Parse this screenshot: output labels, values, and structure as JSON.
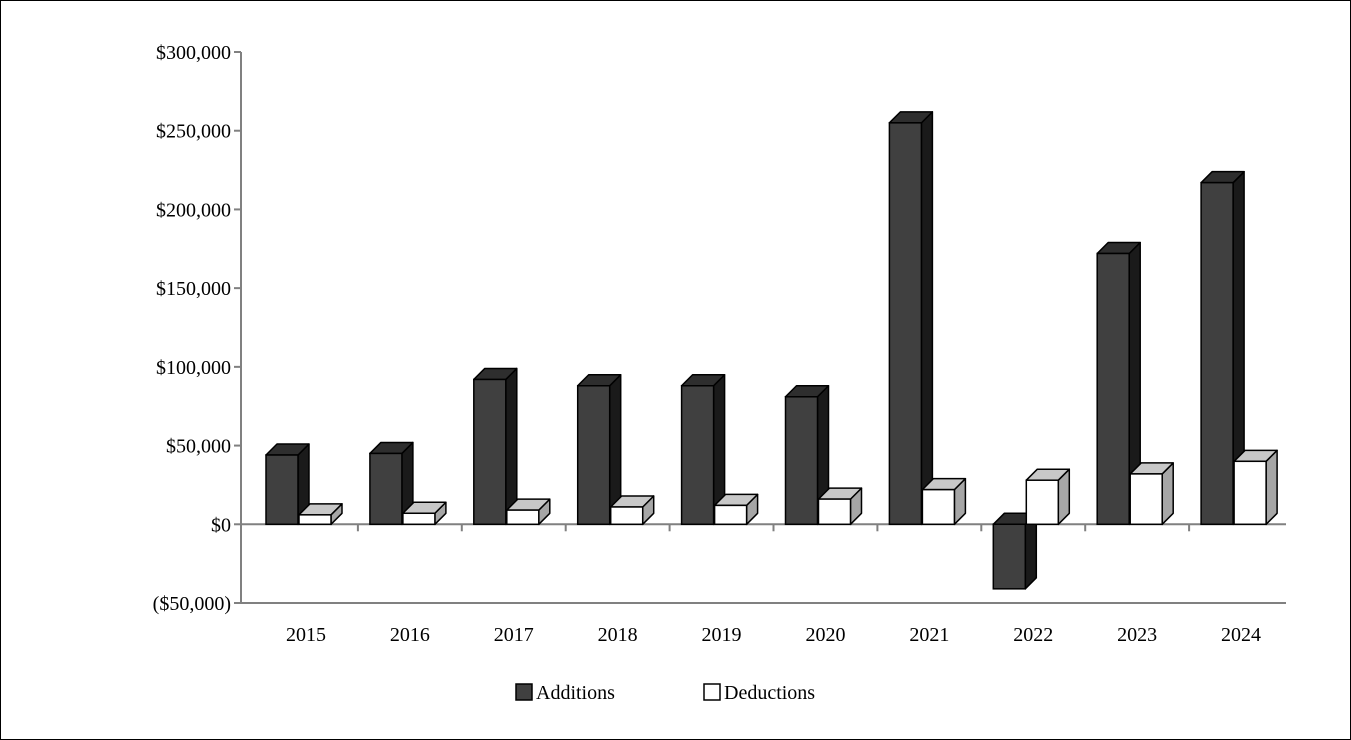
{
  "chart_data": {
    "type": "bar",
    "categories": [
      "2015",
      "2016",
      "2017",
      "2018",
      "2019",
      "2020",
      "2021",
      "2022",
      "2023",
      "2024"
    ],
    "series": [
      {
        "name": "Additions",
        "values": [
          44000,
          45000,
          92000,
          88000,
          88000,
          81000,
          255000,
          -41000,
          172000,
          217000
        ],
        "color": "#404040"
      },
      {
        "name": "Deductions",
        "values": [
          6000,
          7000,
          9000,
          11000,
          12000,
          16000,
          22000,
          28000,
          32000,
          40000
        ],
        "color": "#ffffff"
      }
    ],
    "ylim": [
      -50000,
      300000
    ],
    "yticks": [
      -50000,
      0,
      50000,
      100000,
      150000,
      200000,
      250000,
      300000
    ],
    "ytick_labels": [
      "($50,000)",
      "$0",
      "$50,000",
      "$100,000",
      "$150,000",
      "$200,000",
      "$250,000",
      "$300,000"
    ],
    "title": "",
    "xlabel": "",
    "ylabel": "",
    "legend_position": "bottom",
    "grid": false,
    "style": "3d-clustered-column"
  }
}
